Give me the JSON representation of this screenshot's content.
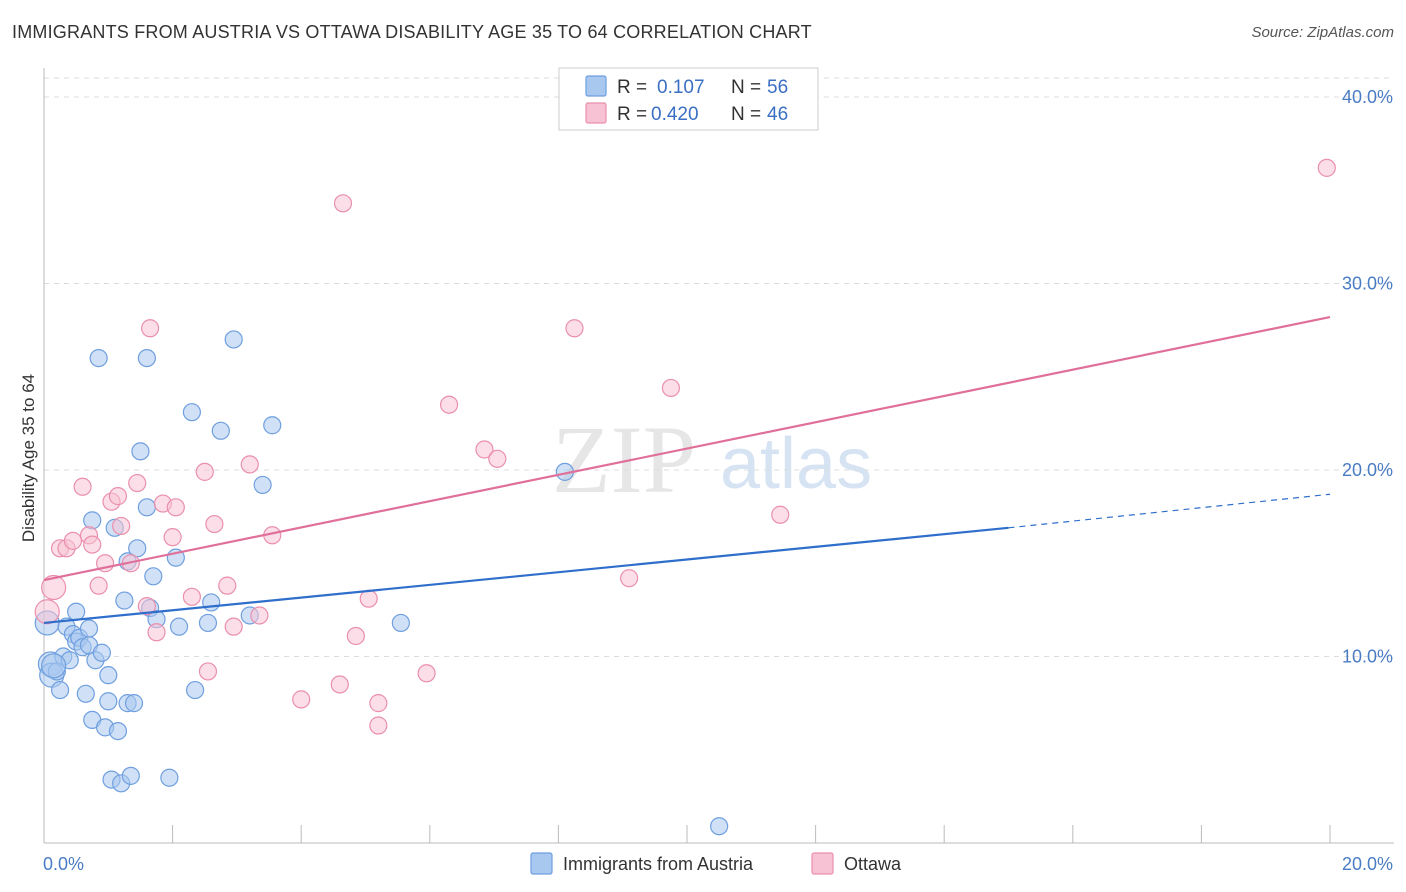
{
  "title": "IMMIGRANTS FROM AUSTRIA VS OTTAWA DISABILITY AGE 35 TO 64 CORRELATION CHART",
  "source": "Source: ZipAtlas.com",
  "watermark": {
    "zip": "ZIP",
    "atlas": "atlas"
  },
  "chart_data": {
    "type": "scatter",
    "title": "IMMIGRANTS FROM AUSTRIA VS OTTAWA DISABILITY AGE 35 TO 64 CORRELATION CHART",
    "xlabel": "",
    "ylabel": "Disability Age 35 to 64",
    "xlim": [
      0,
      20
    ],
    "ylim": [
      0,
      40
    ],
    "x_tick_labels": [
      "0.0%",
      "20.0%"
    ],
    "y_ticks": [
      10,
      20,
      30,
      40
    ],
    "y_tick_labels": [
      "10.0%",
      "20.0%",
      "30.0%",
      "40.0%"
    ],
    "colors": {
      "austria_fill": "#a9c8f0",
      "austria_stroke": "#6f9fde",
      "austria_line": "#2f6fcb",
      "ottawa_fill": "#f7c2d3",
      "ottawa_stroke": "#ea8fae",
      "ottawa_line": "#e0709a",
      "grid": "#dddddd"
    },
    "legend": {
      "rows": [
        {
          "r_label": "R =",
          "r_value": "0.107",
          "n_label": "N =",
          "n_value": "56"
        },
        {
          "r_label": "R =",
          "r_value": "0.420",
          "n_label": "N =",
          "n_value": "46"
        }
      ]
    },
    "series": [
      {
        "name": "Immigrants from Austria",
        "r": 0.107,
        "n": 56,
        "trend": {
          "x0": 0,
          "y0": 11.8,
          "x1": 15,
          "y1": 16.9,
          "dash_x1": 20,
          "dash_y1": 18.7
        },
        "points": [
          [
            0.05,
            11.8
          ],
          [
            0.1,
            9.6
          ],
          [
            0.12,
            9.0
          ],
          [
            0.2,
            9.2
          ],
          [
            0.25,
            8.2
          ],
          [
            0.3,
            10.0
          ],
          [
            0.35,
            11.6
          ],
          [
            0.4,
            9.8
          ],
          [
            0.45,
            11.2
          ],
          [
            0.5,
            10.8
          ],
          [
            0.5,
            12.4
          ],
          [
            0.55,
            11.0
          ],
          [
            0.6,
            10.5
          ],
          [
            0.65,
            8.0
          ],
          [
            0.7,
            11.5
          ],
          [
            0.7,
            10.6
          ],
          [
            0.75,
            6.6
          ],
          [
            0.75,
            17.3
          ],
          [
            0.8,
            9.8
          ],
          [
            0.85,
            26.0
          ],
          [
            0.9,
            10.2
          ],
          [
            0.95,
            6.2
          ],
          [
            1.0,
            7.6
          ],
          [
            1.0,
            9.0
          ],
          [
            1.05,
            3.4
          ],
          [
            1.1,
            16.9
          ],
          [
            1.15,
            6.0
          ],
          [
            1.2,
            3.2
          ],
          [
            1.25,
            13.0
          ],
          [
            1.3,
            7.5
          ],
          [
            1.3,
            15.1
          ],
          [
            1.35,
            3.6
          ],
          [
            1.4,
            7.5
          ],
          [
            1.45,
            15.8
          ],
          [
            1.5,
            21.0
          ],
          [
            1.6,
            18.0
          ],
          [
            1.65,
            12.6
          ],
          [
            1.7,
            14.3
          ],
          [
            1.75,
            12.0
          ],
          [
            1.95,
            3.5
          ],
          [
            2.05,
            15.3
          ],
          [
            2.1,
            11.6
          ],
          [
            2.3,
            23.1
          ],
          [
            2.35,
            8.2
          ],
          [
            2.55,
            11.8
          ],
          [
            2.6,
            12.9
          ],
          [
            2.75,
            22.1
          ],
          [
            2.95,
            27.0
          ],
          [
            3.2,
            12.2
          ],
          [
            3.4,
            19.2
          ],
          [
            3.55,
            22.4
          ],
          [
            5.55,
            11.8
          ],
          [
            8.1,
            19.9
          ],
          [
            10.5,
            0.9
          ],
          [
            1.6,
            26.0
          ],
          [
            0.15,
            9.5
          ]
        ]
      },
      {
        "name": "Ottawa",
        "r": 0.42,
        "n": 46,
        "trend": {
          "x0": 0,
          "y0": 14.1,
          "x1": 20,
          "y1": 28.2
        },
        "points": [
          [
            0.05,
            12.4
          ],
          [
            0.15,
            13.7
          ],
          [
            0.25,
            15.8
          ],
          [
            0.35,
            15.8
          ],
          [
            0.45,
            16.2
          ],
          [
            0.6,
            19.1
          ],
          [
            0.7,
            16.5
          ],
          [
            0.75,
            16.0
          ],
          [
            0.85,
            13.8
          ],
          [
            0.95,
            15.0
          ],
          [
            1.05,
            18.3
          ],
          [
            1.15,
            18.6
          ],
          [
            1.2,
            17.0
          ],
          [
            1.35,
            15.0
          ],
          [
            1.45,
            19.3
          ],
          [
            1.6,
            12.7
          ],
          [
            1.65,
            27.6
          ],
          [
            1.75,
            11.3
          ],
          [
            1.85,
            18.2
          ],
          [
            2.0,
            16.4
          ],
          [
            2.05,
            18.0
          ],
          [
            2.3,
            13.2
          ],
          [
            2.5,
            19.9
          ],
          [
            2.55,
            9.2
          ],
          [
            2.65,
            17.1
          ],
          [
            2.85,
            13.8
          ],
          [
            2.95,
            11.6
          ],
          [
            3.2,
            20.3
          ],
          [
            3.35,
            12.2
          ],
          [
            3.55,
            16.5
          ],
          [
            4.0,
            7.7
          ],
          [
            4.6,
            8.5
          ],
          [
            4.65,
            34.3
          ],
          [
            4.85,
            11.1
          ],
          [
            5.05,
            13.1
          ],
          [
            5.2,
            7.5
          ],
          [
            5.2,
            6.3
          ],
          [
            5.95,
            9.1
          ],
          [
            6.3,
            23.5
          ],
          [
            6.85,
            21.1
          ],
          [
            7.05,
            20.6
          ],
          [
            8.25,
            27.6
          ],
          [
            9.1,
            14.2
          ],
          [
            9.75,
            24.4
          ],
          [
            11.45,
            17.6
          ],
          [
            19.95,
            36.2
          ]
        ]
      }
    ]
  }
}
